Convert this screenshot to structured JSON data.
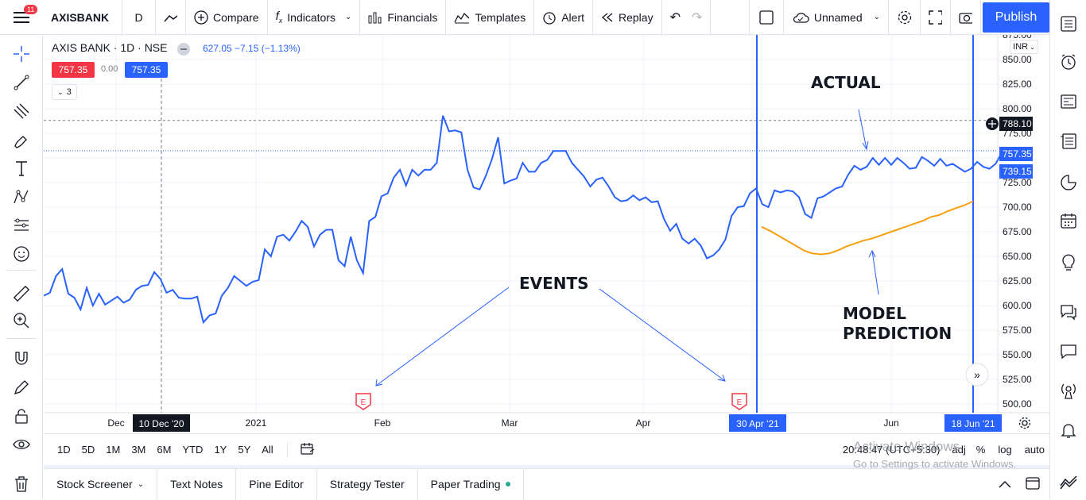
{
  "topbar": {
    "badge": "11",
    "symbol": "AXISBANK",
    "interval": "D",
    "compare": "Compare",
    "indicators": "Indicators",
    "financials": "Financials",
    "templates": "Templates",
    "alert": "Alert",
    "replay": "Replay",
    "layout_name": "Unnamed",
    "publish": "Publish"
  },
  "legend": {
    "title": "AXIS BANK · 1D · NSE",
    "change": "627.05  −7.15 (−1.13%)",
    "bid": "757.35",
    "spread": "0.00",
    "ask": "757.35",
    "indicator_count": "3"
  },
  "price_axis": {
    "currency": "INR",
    "ticks": [
      "875.00",
      "850.00",
      "825.00",
      "800.00",
      "775.00",
      "750.00",
      "725.00",
      "700.00",
      "675.00",
      "650.00",
      "625.00",
      "600.00",
      "575.00",
      "550.00",
      "525.00",
      "500.00"
    ],
    "crosshair_label": "788.10",
    "last_label": "757.35",
    "last_label2": "739.15"
  },
  "time_axis": {
    "ticks": [
      {
        "label": "Dec"
      },
      {
        "label": "2021"
      },
      {
        "label": "Feb"
      },
      {
        "label": "Mar"
      },
      {
        "label": "Apr"
      },
      {
        "label": "Jun"
      }
    ],
    "crosshair_label": "10 Dec '20",
    "marker1_label": "30 Apr '21",
    "marker2_label": "18 Jun '21"
  },
  "annotations": {
    "actual": "ACTUAL",
    "events": "EVENTS",
    "model1": "MODEL",
    "model2": "PREDICTION",
    "event_marker": "E"
  },
  "chart_data": {
    "type": "line",
    "series": [
      {
        "values": [
          610,
          613,
          630,
          637,
          612,
          608,
          596,
          618,
          600,
          612,
          601,
          605,
          609,
          603,
          606,
          616,
          620,
          621,
          634,
          627,
          613,
          616,
          608,
          607,
          607,
          609,
          583,
          590,
          592,
          610,
          618,
          630,
          625,
          620,
          624,
          626,
          657,
          650,
          670,
          672,
          666,
          675,
          686,
          680,
          660,
          672,
          677,
          677,
          646,
          640,
          670,
          646,
          633,
          686,
          690,
          711,
          714,
          730,
          738,
          722,
          738,
          732,
          738,
          738,
          745,
          793,
          777,
          778,
          776,
          738,
          720,
          718,
          732,
          749,
          771,
          724,
          727,
          729,
          745,
          736,
          736,
          745,
          748,
          757,
          757,
          757,
          745,
          738,
          731,
          721,
          728,
          730,
          721,
          710,
          706,
          707,
          712,
          707,
          710,
          705,
          706,
          688,
          676,
          683,
          668,
          663,
          668,
          661,
          648,
          651,
          657,
          667,
          691,
          700,
          701,
          714,
          719,
          703,
          700,
          717,
          715,
          717,
          716,
          710,
          693,
          689,
          709,
          711,
          715,
          719,
          721,
          733,
          742,
          738,
          741,
          750,
          743,
          750,
          743,
          750,
          745,
          739,
          740,
          751,
          747,
          742,
          749,
          742,
          744,
          740,
          736,
          739,
          746,
          741,
          739,
          744,
          755
        ]
      },
      {
        "values": [
          680,
          676,
          671,
          666,
          661,
          656,
          653,
          652,
          653,
          656,
          660,
          663,
          666,
          668,
          671,
          674,
          677,
          680,
          683,
          686,
          690,
          692,
          696,
          699,
          702,
          706
        ]
      }
    ],
    "ylim": [
      500,
      880
    ]
  },
  "bottombar": {
    "ranges": [
      "1D",
      "5D",
      "1M",
      "3M",
      "6M",
      "YTD",
      "1Y",
      "5Y",
      "All"
    ],
    "time": "20:48:47 (UTC+5:30)",
    "adj": "adj",
    "percent": "%",
    "log": "log",
    "auto": "auto"
  },
  "panels": {
    "tabs": [
      "Stock Screener",
      "Text Notes",
      "Pine Editor",
      "Strategy Tester",
      "Paper Trading"
    ]
  },
  "watermark": {
    "line1": "Activate Windows",
    "line2": "Go to Settings to activate Windows."
  },
  "colors": {
    "line": "#2962ff",
    "prediction": "#f59f0b",
    "red": "#f23645"
  }
}
